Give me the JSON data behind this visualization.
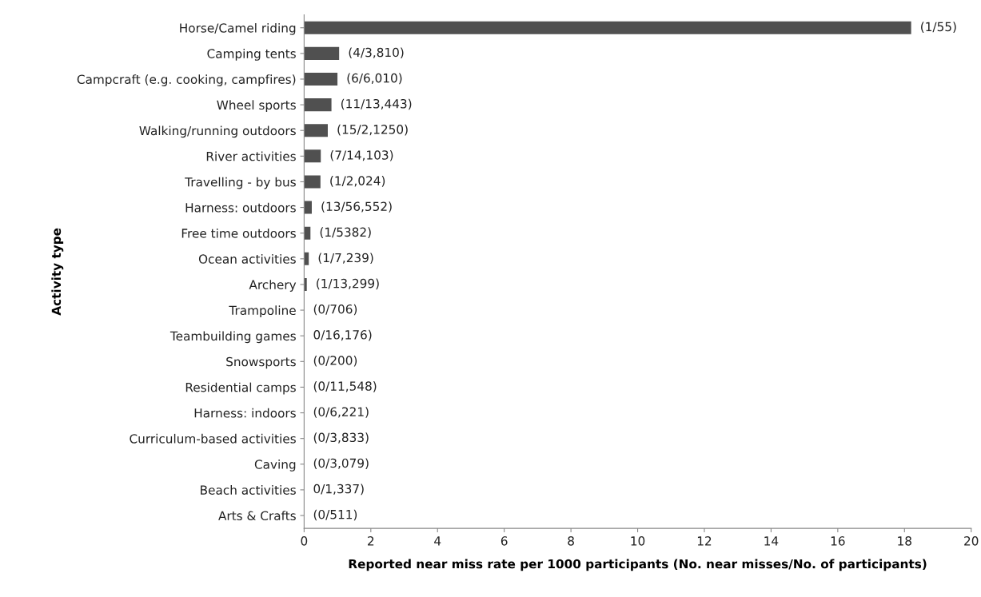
{
  "chart_data": {
    "type": "bar",
    "orientation": "horizontal",
    "xlabel": "Reported near miss rate per 1000 participants (No. near misses/No. of participants)",
    "ylabel": "Activity type",
    "categories": [
      "Horse/Camel riding",
      "Camping tents",
      "Campcraft (e.g. cooking, campfires)",
      "Wheel sports",
      "Walking/running outdoors",
      "River activities",
      "Travelling - by bus",
      "Harness: outdoors",
      "Free time outdoors",
      "Ocean activities",
      "Archery",
      "Trampoline",
      "Teambuilding games",
      "Snowsports",
      "Residential camps",
      "Harness: indoors",
      "Curriculum-based activities",
      "Caving",
      "Beach activities",
      "Arts & Crafts"
    ],
    "values": [
      18.2,
      1.05,
      1.0,
      0.82,
      0.71,
      0.5,
      0.49,
      0.23,
      0.19,
      0.14,
      0.08,
      0,
      0,
      0,
      0,
      0,
      0,
      0,
      0,
      0
    ],
    "value_labels": [
      "(1/55)",
      "(4/3,810)",
      "(6/6,010)",
      "(11/13,443)",
      "(15/2,1250)",
      "(7/14,103)",
      "(1/2,024)",
      "(13/56,552)",
      "(1/5382)",
      "(1/7,239)",
      "(1/13,299)",
      "(0/706)",
      "0/16,176)",
      "(0/200)",
      "(0/11,548)",
      "(0/6,221)",
      "(0/3,833)",
      "(0/3,079)",
      "0/1,337)",
      "(0/511)"
    ],
    "color": "#505050",
    "xlim": [
      0,
      20
    ],
    "xticks": [
      0,
      2,
      4,
      6,
      8,
      10,
      12,
      14,
      16,
      18,
      20
    ],
    "grid": false,
    "legend": false
  }
}
